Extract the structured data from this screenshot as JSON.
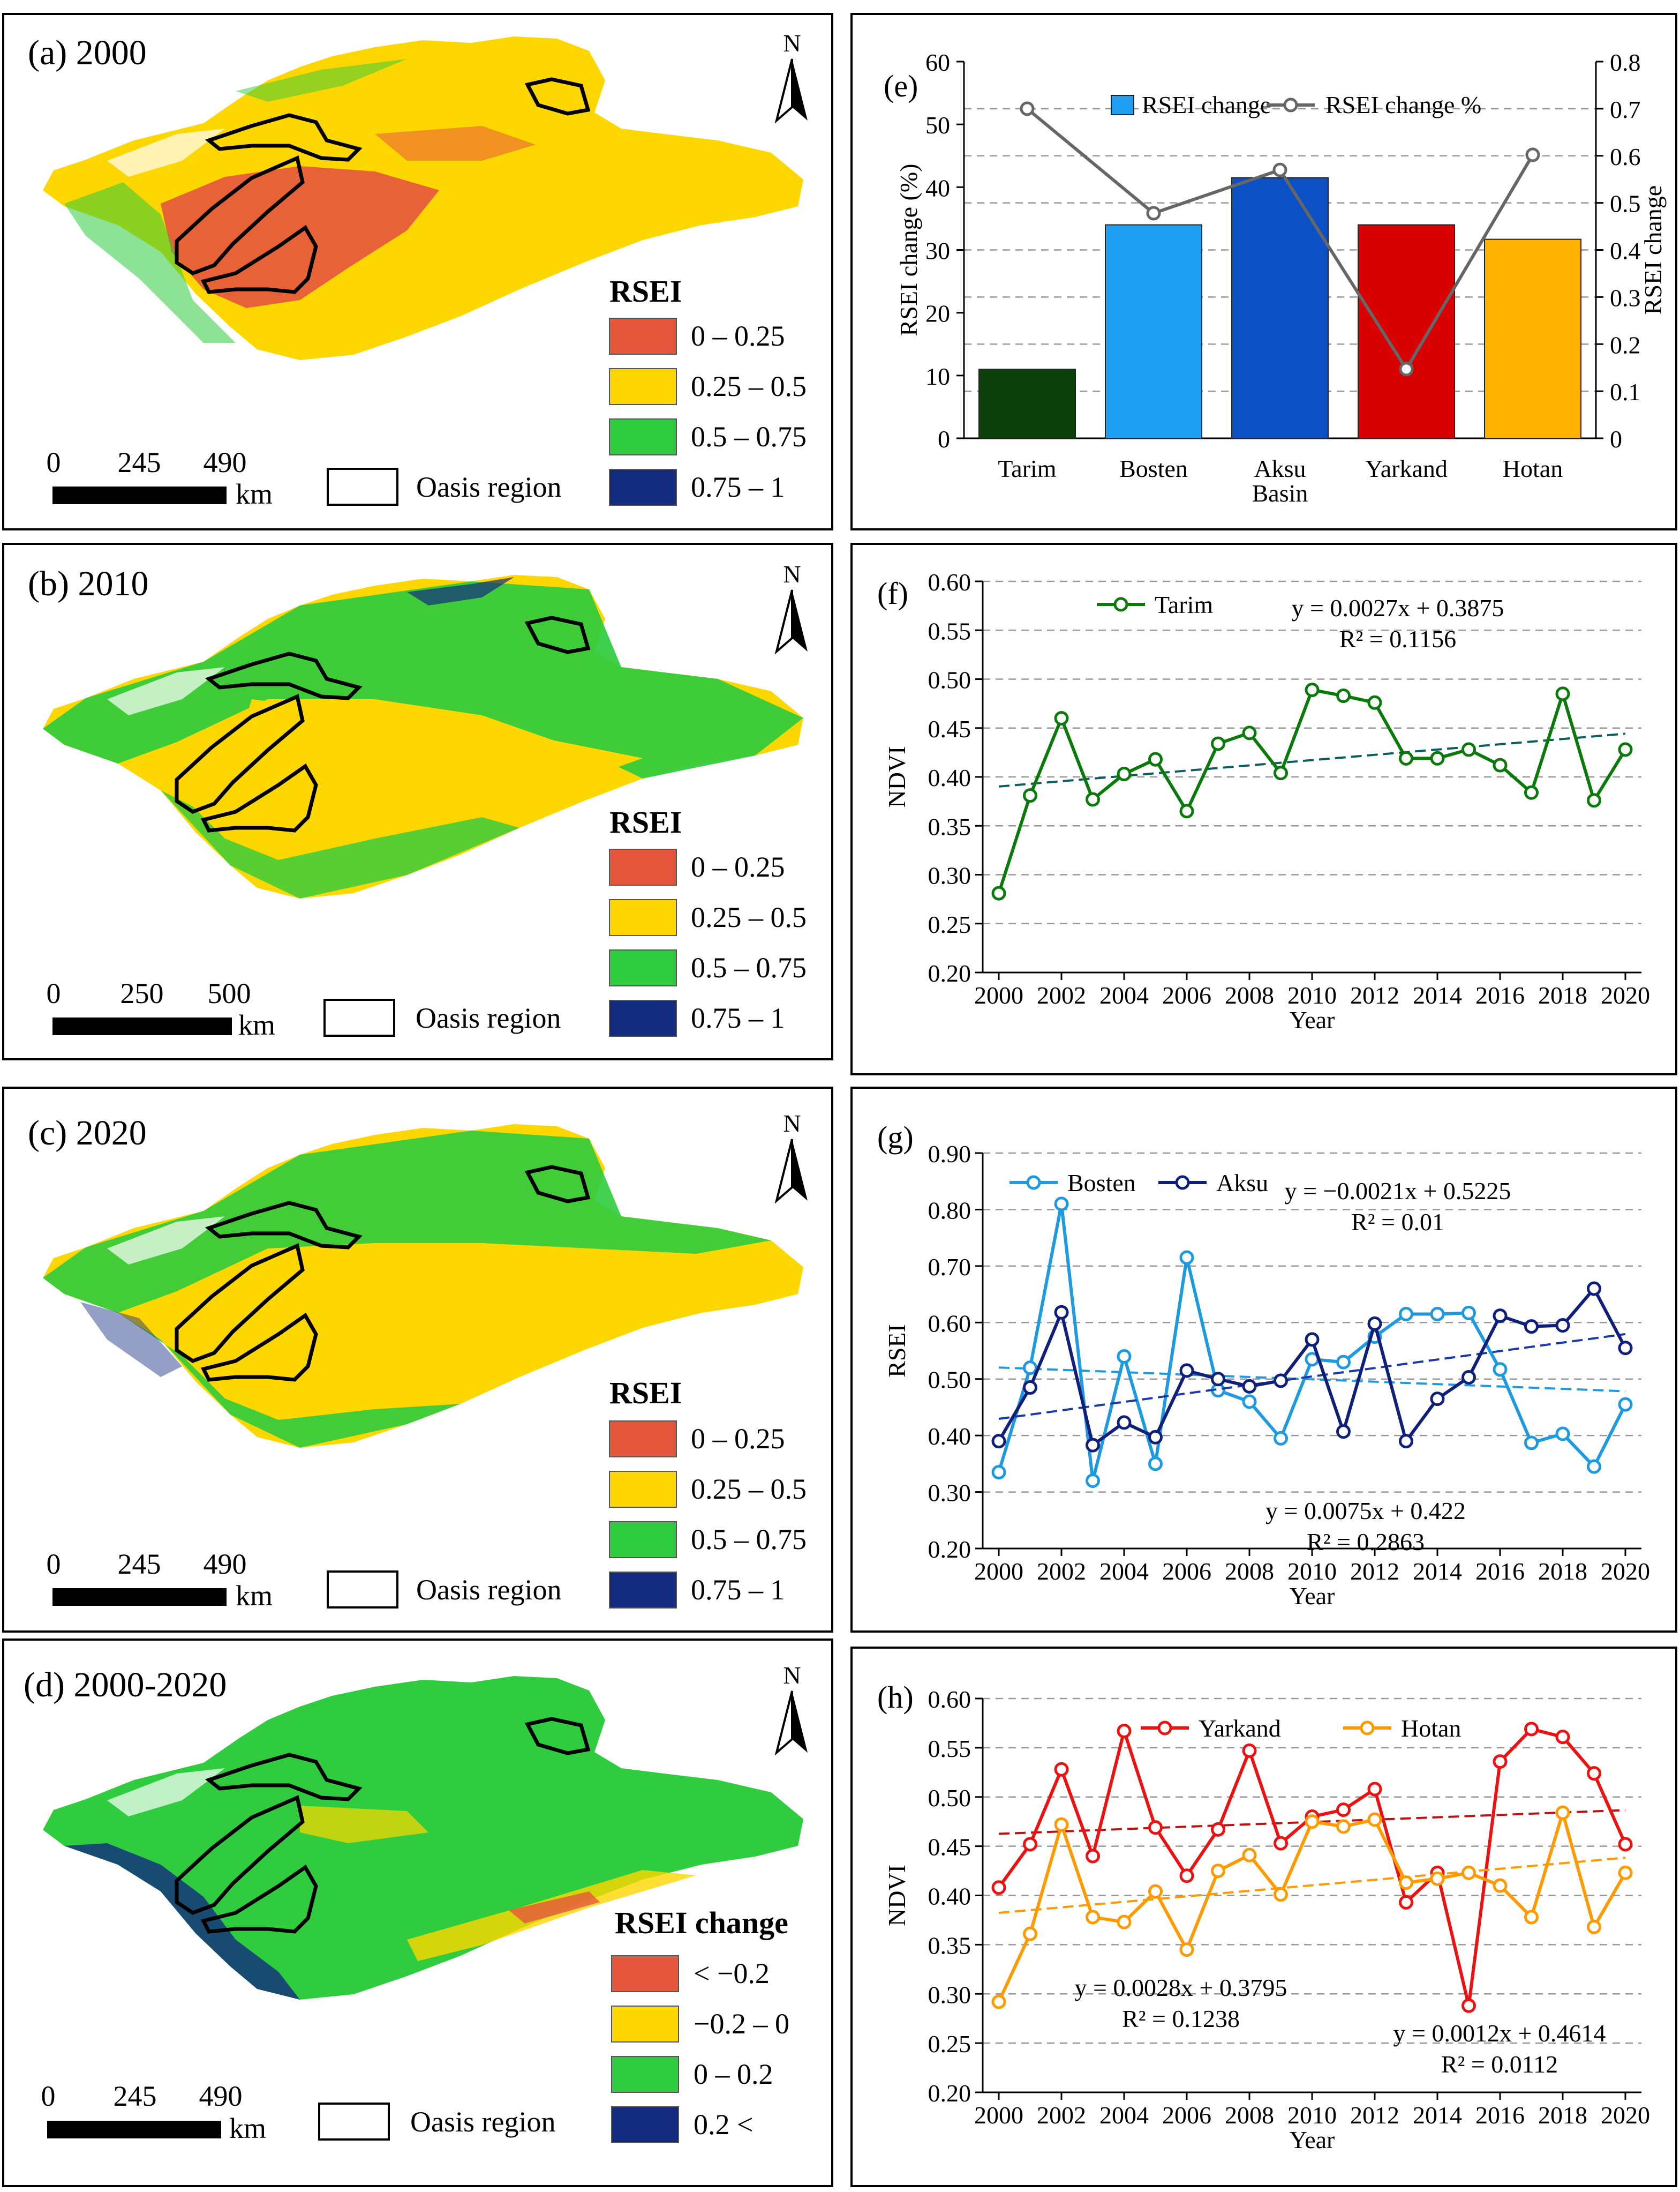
{
  "colors": {
    "rsei_0_025": "#e4573d",
    "rsei_025_05": "#ffd700",
    "rsei_05_075": "#2ecc3e",
    "rsei_075_1": "#122b7e",
    "change_neg": "#e4573d",
    "change_zero": "#ffd700",
    "change_pos": "#2ecc3e",
    "change_high": "#122b7e",
    "tarim": "#0b400b",
    "bosten": "#1e9ff2",
    "aksu": "#0b50c4",
    "yarkand": "#d80000",
    "hotan": "#ffb300",
    "tarim_line": "#0a7a0a",
    "bosten_line": "#1e9be0",
    "aksu_line": "#10207a",
    "yarkand_line": "#ee1111",
    "hotan_line": "#ff9a00",
    "pct_line": "#666666"
  },
  "maps": [
    {
      "title": "(a) 2000",
      "north": "N",
      "legend_title": "RSEI",
      "scale_ticks": [
        "0",
        "245",
        "490"
      ],
      "scale_unit": "km",
      "oasis_label": "Oasis region",
      "legend": [
        "0 – 0.25",
        "0.25 – 0.5",
        "0.5 – 0.75",
        "0.75 – 1"
      ]
    },
    {
      "title": "(b) 2010",
      "north": "N",
      "legend_title": "RSEI",
      "scale_ticks": [
        "0",
        "250",
        "500"
      ],
      "scale_unit": "km",
      "oasis_label": "Oasis region",
      "legend": [
        "0 – 0.25",
        "0.25 – 0.5",
        "0.5 – 0.75",
        "0.75 – 1"
      ]
    },
    {
      "title": "(c) 2020",
      "north": "N",
      "legend_title": "RSEI",
      "scale_ticks": [
        "0",
        "245",
        "490"
      ],
      "scale_unit": "km",
      "oasis_label": "Oasis region",
      "legend": [
        "0 – 0.25",
        "0.25 – 0.5",
        "0.5 – 0.75",
        "0.75 – 1"
      ]
    },
    {
      "title": "(d) 2000-2020",
      "north": "N",
      "legend_title": "RSEI change",
      "scale_ticks": [
        "0",
        "245",
        "490"
      ],
      "scale_unit": "km",
      "oasis_label": "Oasis region",
      "legend": [
        "< −0.2",
        "−0.2 – 0",
        "0 – 0.2",
        "0.2 <"
      ]
    }
  ],
  "chart_data": [
    {
      "id": "e",
      "label": "(e)",
      "type": "bar",
      "categories": [
        "Tarim",
        "Bosten",
        "Aksu",
        "Yarkand",
        "Hotan"
      ],
      "xlabel": "Basin",
      "ylabel": "RSEI change (%)",
      "ylim": [
        0,
        60
      ],
      "yticks": [
        "0",
        "10",
        "20",
        "30",
        "40",
        "50",
        "60"
      ],
      "y2label": "RSEI change",
      "y2lim": [
        0,
        0.8
      ],
      "y2ticks": [
        "0",
        "0.1",
        "0.2",
        "0.3",
        "0.4",
        "0.5",
        "0.6",
        "0.7",
        "0.8"
      ],
      "series": [
        {
          "name": "RSEI change",
          "type": "bar",
          "axis": "left",
          "values": [
            11,
            34,
            41.5,
            34,
            31.7
          ]
        },
        {
          "name": "RSEI change %",
          "type": "line",
          "axis": "right",
          "values": [
            0.7,
            0.478,
            0.57,
            0.147,
            0.602
          ]
        }
      ]
    },
    {
      "id": "f",
      "label": "(f)",
      "type": "line",
      "x": [
        2000,
        2001,
        2002,
        2003,
        2004,
        2005,
        2006,
        2007,
        2008,
        2009,
        2010,
        2011,
        2012,
        2013,
        2014,
        2015,
        2016,
        2017,
        2018,
        2019,
        2020
      ],
      "xticks": [
        "2000",
        "2002",
        "2004",
        "2006",
        "2008",
        "2010",
        "2012",
        "2014",
        "2016",
        "2018",
        "2020"
      ],
      "xlabel": "Year",
      "ylabel": "NDVI",
      "ylim": [
        0.2,
        0.6
      ],
      "yticks": [
        "0.20",
        "0.25",
        "0.30",
        "0.35",
        "0.40",
        "0.45",
        "0.50",
        "0.55",
        "0.60"
      ],
      "series": [
        {
          "name": "Tarim",
          "values": [
            0.281,
            0.381,
            0.46,
            0.377,
            0.403,
            0.418,
            0.365,
            0.434,
            0.445,
            0.404,
            0.489,
            0.483,
            0.476,
            0.419,
            0.419,
            0.428,
            0.412,
            0.384,
            0.485,
            0.376,
            0.428
          ],
          "trend": [
            0.3902,
            0.4442
          ],
          "equation": "y = 0.0027x + 0.3875",
          "r2": "R² = 0.1156"
        }
      ]
    },
    {
      "id": "g",
      "label": "(g)",
      "type": "line",
      "x": [
        2000,
        2001,
        2002,
        2003,
        2004,
        2005,
        2006,
        2007,
        2008,
        2009,
        2010,
        2011,
        2012,
        2013,
        2014,
        2015,
        2016,
        2017,
        2018,
        2019,
        2020
      ],
      "xticks": [
        "2000",
        "2002",
        "2004",
        "2006",
        "2008",
        "2010",
        "2012",
        "2014",
        "2016",
        "2018",
        "2020"
      ],
      "xlabel": "Year",
      "ylabel": "RSEI",
      "ylim": [
        0.2,
        0.9
      ],
      "yticks": [
        "0.20",
        "0.30",
        "0.40",
        "0.50",
        "0.60",
        "0.70",
        "0.80",
        "0.90"
      ],
      "series": [
        {
          "name": "Bosten",
          "values": [
            0.335,
            0.52,
            0.81,
            0.32,
            0.54,
            0.35,
            0.715,
            0.48,
            0.46,
            0.395,
            0.535,
            0.53,
            0.575,
            0.615,
            0.615,
            0.617,
            0.517,
            0.387,
            0.403,
            0.345,
            0.455
          ],
          "trend": [
            0.5204,
            0.4784
          ],
          "equation": "y = −0.0021x + 0.5225",
          "r2": "R² = 0.01"
        },
        {
          "name": "Aksu",
          "values": [
            0.39,
            0.485,
            0.618,
            0.383,
            0.423,
            0.397,
            0.515,
            0.5,
            0.487,
            0.497,
            0.57,
            0.407,
            0.598,
            0.39,
            0.465,
            0.503,
            0.612,
            0.593,
            0.595,
            0.66,
            0.555
          ],
          "trend": [
            0.4295,
            0.5795
          ],
          "equation": "y = 0.0075x + 0.422",
          "r2": "R² = 0.2863"
        }
      ]
    },
    {
      "id": "h",
      "label": "(h)",
      "type": "line",
      "x": [
        2000,
        2001,
        2002,
        2003,
        2004,
        2005,
        2006,
        2007,
        2008,
        2009,
        2010,
        2011,
        2012,
        2013,
        2014,
        2015,
        2016,
        2017,
        2018,
        2019,
        2020
      ],
      "xticks": [
        "2000",
        "2002",
        "2004",
        "2006",
        "2008",
        "2010",
        "2012",
        "2014",
        "2016",
        "2018",
        "2020"
      ],
      "xlabel": "Year",
      "ylabel": "NDVI",
      "ylim": [
        0.2,
        0.6
      ],
      "yticks": [
        "0.20",
        "0.25",
        "0.30",
        "0.35",
        "0.40",
        "0.45",
        "0.50",
        "0.55",
        "0.60"
      ],
      "series": [
        {
          "name": "Yarkand",
          "values": [
            0.408,
            0.452,
            0.528,
            0.44,
            0.567,
            0.469,
            0.42,
            0.467,
            0.547,
            0.453,
            0.48,
            0.487,
            0.508,
            0.393,
            0.423,
            0.288,
            0.536,
            0.569,
            0.561,
            0.524,
            0.452
          ],
          "trend": [
            0.4626,
            0.4866
          ],
          "equation": "y = 0.0012x + 0.4614",
          "r2": "R² = 0.0112"
        },
        {
          "name": "Hotan",
          "values": [
            0.292,
            0.361,
            0.472,
            0.378,
            0.373,
            0.404,
            0.345,
            0.425,
            0.441,
            0.401,
            0.475,
            0.47,
            0.477,
            0.413,
            0.417,
            0.423,
            0.41,
            0.378,
            0.484,
            0.368,
            0.423
          ],
          "trend": [
            0.3823,
            0.4383
          ],
          "equation": "y = 0.0028x + 0.3795",
          "r2": "R² = 0.1238"
        }
      ]
    }
  ]
}
